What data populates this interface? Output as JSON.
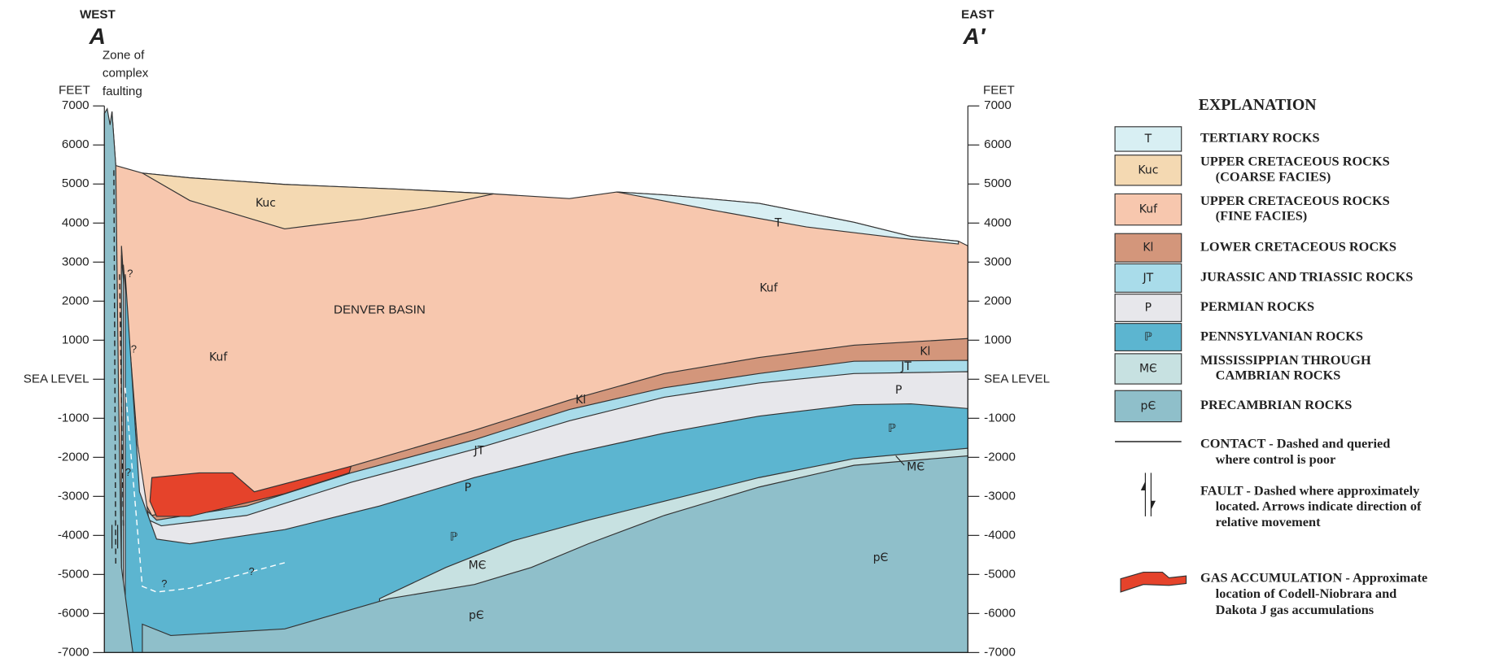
{
  "header": {
    "west": "WEST",
    "west_mark": "A",
    "east": "EAST",
    "east_mark": "A′",
    "zone_note": [
      "Zone of",
      "complex",
      "faulting"
    ]
  },
  "left_axis": {
    "title": "FEET",
    "ticks": [
      "7000",
      "6000",
      "5000",
      "4000",
      "3000",
      "2000",
      "1000",
      "SEA LEVEL",
      "-1000",
      "-2000",
      "-3000",
      "-4000",
      "-5000",
      "-6000",
      "-7000"
    ]
  },
  "right_axis": {
    "title": "FEET",
    "ticks": [
      "7000",
      "6000",
      "5000",
      "4000",
      "3000",
      "2000",
      "1000",
      "SEA LEVEL",
      "-1000",
      "-2000",
      "-3000",
      "-4000",
      "-5000",
      "-6000",
      "-7000"
    ]
  },
  "section_labels": [
    "Kuc",
    "T",
    "Kuf",
    "DENVER BASIN",
    "Kuf",
    "Kl",
    "Kl",
    "JT",
    "JT",
    "P",
    "P",
    "ℙ",
    "ℙ",
    "MЄ",
    "MЄ",
    "pЄ",
    "pЄ"
  ],
  "query_mark": "?",
  "legend": {
    "title": "EXPLANATION",
    "units": [
      {
        "symbol": "T",
        "lines": [
          "TERTIARY ROCKS"
        ]
      },
      {
        "symbol": "Kuc",
        "lines": [
          "UPPER CRETACEOUS ROCKS",
          "(COARSE FACIES)"
        ]
      },
      {
        "symbol": "Kuf",
        "lines": [
          "UPPER CRETACEOUS ROCKS",
          "(FINE FACIES)"
        ]
      },
      {
        "symbol": "Kl",
        "lines": [
          "LOWER CRETACEOUS ROCKS"
        ]
      },
      {
        "symbol": "JT",
        "lines": [
          "JURASSIC AND TRIASSIC ROCKS"
        ]
      },
      {
        "symbol": "P",
        "lines": [
          "PERMIAN ROCKS"
        ]
      },
      {
        "symbol": "ℙ",
        "lines": [
          "PENNSYLVANIAN ROCKS"
        ]
      },
      {
        "symbol": "MЄ",
        "lines": [
          "MISSISSIPPIAN THROUGH",
          "CAMBRIAN ROCKS"
        ]
      },
      {
        "symbol": "pЄ",
        "lines": [
          "PRECAMBRIAN ROCKS"
        ]
      }
    ],
    "contact": {
      "lines": [
        "CONTACT - Dashed and queried",
        "where control is poor"
      ]
    },
    "fault": {
      "lines": [
        "FAULT - Dashed where approximately",
        "located.  Arrows indicate direction of",
        "relative movement"
      ]
    },
    "gas": {
      "lines": [
        "GAS ACCUMULATION - Approximate",
        "location of Codell-Niobrara and",
        "Dakota J gas accumulations"
      ]
    }
  }
}
